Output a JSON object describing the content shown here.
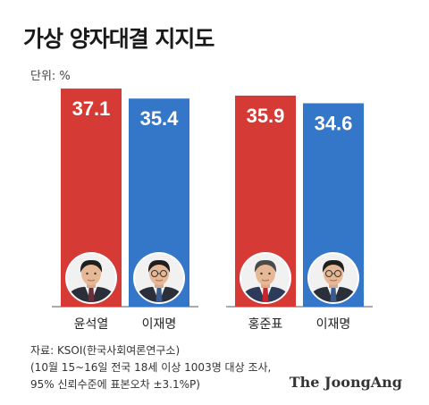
{
  "header": {
    "title": "가상 양자대결 지지도",
    "unit": "단위: %"
  },
  "colors": {
    "red": "#d53a35",
    "blue": "#3476c8"
  },
  "chart_data": {
    "type": "bar",
    "title": "가상 양자대결 지지도",
    "unit": "%",
    "categories": [
      "윤석열",
      "이재명",
      "홍준표",
      "이재명"
    ],
    "values": [
      37.1,
      35.4,
      35.9,
      34.6
    ],
    "ylim": [
      0,
      40
    ],
    "grid": false,
    "matchups": [
      {
        "candidates": [
          "윤석열",
          "이재명"
        ],
        "values": [
          37.1,
          35.4
        ]
      },
      {
        "candidates": [
          "홍준표",
          "이재명"
        ],
        "values": [
          35.9,
          34.6
        ]
      }
    ],
    "bar_colors": [
      "#d53a35",
      "#3476c8",
      "#d53a35",
      "#3476c8"
    ],
    "portrait_icons": [
      "portrait-yoon-icon",
      "portrait-lee-icon",
      "portrait-hong-icon",
      "portrait-lee-icon"
    ]
  },
  "footer": {
    "source_line1": "자료: KSOI(한국사회여론연구소)",
    "source_line2": "(10월 15~16일 전국 18세 이상 1003명 대상 조사,",
    "source_line3": "95% 신뢰수준에 표본오차 ±3.1%P)",
    "brand": "The JoongAng"
  }
}
